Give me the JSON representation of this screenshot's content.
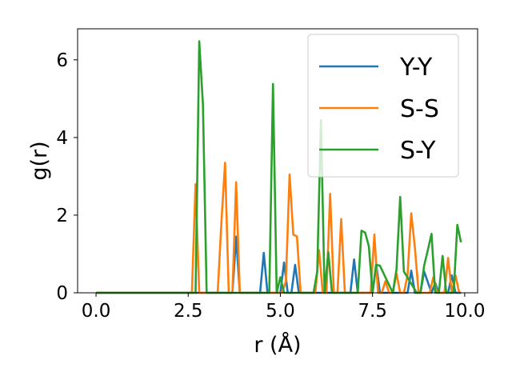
{
  "chart_data": {
    "type": "line",
    "xlabel": "r (Å)",
    "ylabel": "g(r)",
    "xlim": [
      -0.5,
      10.35
    ],
    "ylim": [
      0,
      6.8
    ],
    "xticks": [
      0.0,
      2.5,
      5.0,
      7.5,
      10.0
    ],
    "xtick_labels": [
      "0.0",
      "2.5",
      "5.0",
      "7.5",
      "10.0"
    ],
    "yticks": [
      0,
      2,
      4,
      6
    ],
    "ytick_labels": [
      "0",
      "2",
      "4",
      "6"
    ],
    "grid": false,
    "legend_position": "top-right",
    "series": [
      {
        "name": "Y-Y",
        "color": "#1f77b4",
        "x": [
          0.0,
          3.7,
          3.8,
          3.9,
          4.45,
          4.55,
          4.65,
          5.0,
          5.1,
          5.2,
          5.3,
          5.4,
          5.5,
          6.9,
          7.0,
          7.1,
          7.5,
          7.6,
          7.7,
          8.45,
          8.55,
          8.65,
          8.8,
          8.9,
          9.1,
          9.2,
          9.3,
          9.55,
          9.65,
          9.75,
          9.9
        ],
        "y": [
          0.0,
          0.0,
          1.45,
          0.0,
          0.0,
          1.03,
          0.0,
          0.0,
          0.78,
          0.0,
          0.0,
          0.72,
          0.0,
          0.0,
          0.86,
          0.0,
          0.0,
          0.75,
          0.0,
          0.0,
          0.57,
          0.0,
          0.0,
          0.55,
          0.0,
          0.25,
          0.0,
          0.0,
          0.45,
          0.0,
          0.0
        ]
      },
      {
        "name": "S-S",
        "color": "#ff7f0e",
        "x": [
          0.0,
          2.6,
          2.7,
          2.8,
          3.3,
          3.4,
          3.5,
          3.6,
          3.7,
          3.8,
          3.9,
          5.05,
          5.15,
          5.25,
          5.35,
          5.45,
          5.55,
          5.95,
          6.05,
          6.15,
          6.25,
          6.35,
          6.45,
          6.55,
          6.65,
          6.75,
          7.45,
          7.55,
          7.65,
          7.75,
          7.85,
          7.95,
          8.05,
          8.15,
          8.25,
          8.35,
          8.45,
          8.55,
          8.65,
          8.75,
          8.85,
          9.05,
          9.15,
          9.25,
          9.35,
          9.45,
          9.55,
          9.65,
          9.75,
          9.85
        ],
        "y": [
          0.0,
          0.0,
          2.8,
          0.0,
          0.0,
          1.8,
          3.35,
          0.0,
          0.0,
          2.85,
          0.0,
          0.0,
          0.3,
          3.05,
          1.5,
          1.45,
          0.0,
          0.0,
          1.1,
          0.0,
          0.0,
          2.55,
          0.0,
          0.0,
          1.9,
          0.0,
          0.0,
          1.5,
          0.0,
          0.0,
          0.3,
          0.0,
          0.0,
          0.5,
          0.0,
          0.0,
          0.45,
          2.05,
          1.15,
          0.0,
          0.0,
          0.0,
          0.4,
          0.0,
          0.0,
          0.0,
          0.9,
          0.0,
          0.45,
          0.0
        ]
      },
      {
        "name": "S-Y",
        "color": "#2ca02c",
        "x": [
          0.0,
          2.7,
          2.8,
          2.9,
          3.0,
          4.7,
          4.8,
          4.9,
          5.0,
          5.1,
          5.2,
          5.3,
          5.9,
          6.0,
          6.1,
          6.2,
          6.3,
          6.4,
          6.5,
          7.1,
          7.2,
          7.3,
          7.4,
          7.5,
          7.6,
          7.7,
          8.05,
          8.15,
          8.25,
          8.35,
          8.7,
          8.8,
          8.9,
          9.0,
          9.1,
          9.2,
          9.3,
          9.4,
          9.5,
          9.6,
          9.7,
          9.8,
          9.9
        ],
        "y": [
          0.0,
          0.0,
          6.48,
          4.85,
          0.0,
          0.0,
          5.38,
          0.0,
          0.4,
          0.0,
          0.0,
          0.0,
          0.0,
          0.55,
          4.45,
          0.0,
          1.05,
          0.0,
          0.0,
          0.0,
          1.6,
          1.55,
          1.2,
          0.0,
          0.72,
          0.7,
          0.0,
          0.6,
          2.47,
          0.55,
          0.0,
          0.0,
          0.7,
          1.1,
          1.52,
          0.0,
          0.0,
          0.95,
          0.0,
          0.0,
          0.0,
          1.75,
          1.3
        ]
      }
    ]
  }
}
